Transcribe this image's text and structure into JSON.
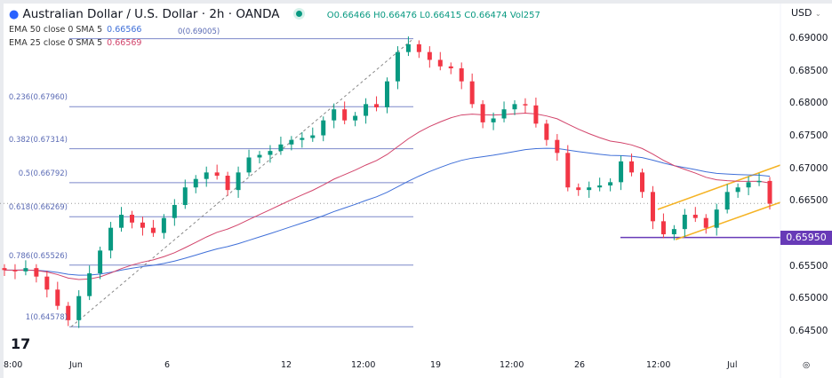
{
  "header": {
    "icon": "currency-flag-icon",
    "title": "Australian Dollar / U.S. Dollar · 2h · OANDA",
    "ohlc": "O0.66466 H0.66476 L0.66415 C0.66474 Vol257"
  },
  "indicators": [
    {
      "label": "EMA 50 close 0 SMA 5",
      "value": "0.66566",
      "color": "#3f6fd8"
    },
    {
      "label": "EMA 25 close 0 SMA 5",
      "value": "0.66569",
      "color": "#d2446b"
    }
  ],
  "price_axis": {
    "currency": "USD",
    "ticks": [
      "0.69000",
      "0.68500",
      "0.68000",
      "0.67500",
      "0.67000",
      "0.66500",
      "0.65500",
      "0.65000",
      "0.64500"
    ],
    "marker": "0.65950",
    "marker_color": "#673ab7"
  },
  "time_axis": {
    "ticks": [
      "8:00",
      "Jun",
      "6",
      "12",
      "12:00",
      "19",
      "12:00",
      "26",
      "12:00",
      "Jul"
    ]
  },
  "logo": "TV",
  "chart_data": {
    "type": "candlestick",
    "ylim": [
      0.6425,
      0.6925
    ],
    "up_color": "#089981",
    "down_color": "#f23645",
    "closes": [
      0.6545,
      0.6543,
      0.6548,
      0.6535,
      0.6515,
      0.649,
      0.6468,
      0.6505,
      0.654,
      0.6575,
      0.661,
      0.663,
      0.6618,
      0.661,
      0.6602,
      0.6625,
      0.6645,
      0.6672,
      0.6685,
      0.6695,
      0.669,
      0.6668,
      0.6695,
      0.6718,
      0.6722,
      0.6728,
      0.6738,
      0.6745,
      0.6748,
      0.6752,
      0.6775,
      0.6792,
      0.6775,
      0.6782,
      0.68,
      0.6795,
      0.6835,
      0.688,
      0.6892,
      0.688,
      0.6868,
      0.6858,
      0.6855,
      0.6835,
      0.68,
      0.6772,
      0.6778,
      0.6792,
      0.68,
      0.6798,
      0.677,
      0.6745,
      0.6725,
      0.6672,
      0.6668,
      0.6672,
      0.6675,
      0.668,
      0.6712,
      0.6695,
      0.6665,
      0.662,
      0.66,
      0.6608,
      0.663,
      0.6625,
      0.661,
      0.6638,
      0.6665,
      0.6672,
      0.668,
      0.6682,
      0.6647
    ],
    "ema_periods": [
      50,
      25
    ],
    "fib_levels": [
      {
        "label": "0(0.69005)",
        "price": 0.69005
      },
      {
        "label": "0.236(0.67960)",
        "price": 0.6796
      },
      {
        "label": "0.382(0.67314)",
        "price": 0.67314
      },
      {
        "label": "0.5(0.66792)",
        "price": 0.66792
      },
      {
        "label": "0.618(0.66269)",
        "price": 0.66269
      },
      {
        "label": "0.786(0.65526)",
        "price": 0.65526
      },
      {
        "label": "1(0.64578)",
        "price": 0.64578
      }
    ],
    "support_level": 0.6595,
    "last_price": 0.66474,
    "fib_color": "#7b88c9",
    "channel_color": "#f5b324"
  }
}
